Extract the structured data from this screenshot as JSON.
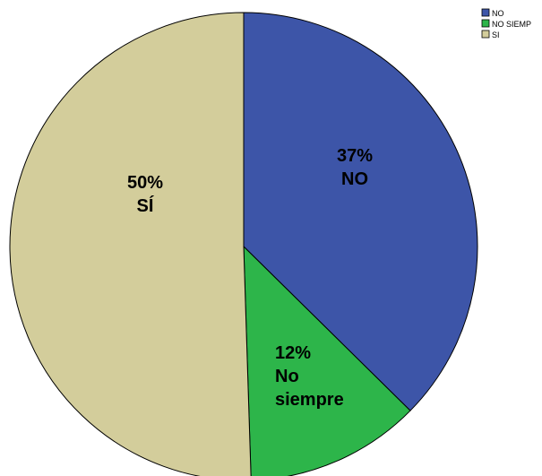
{
  "chart_data": {
    "type": "pie",
    "slices": [
      {
        "name": "NO",
        "value": 37,
        "color": "#3d55a8",
        "label_lines": [
          "37%",
          "NO"
        ]
      },
      {
        "name": "NO SIEMP",
        "value": 12,
        "color": "#2db54a",
        "label_lines": [
          "12%",
          "No",
          "siempre"
        ]
      },
      {
        "name": "SI",
        "value": 50,
        "color": "#d3cd9b",
        "label_lines": [
          "50%",
          "SÍ"
        ]
      }
    ],
    "start_angle_deg": 0,
    "direction": "clockwise",
    "legend": {
      "position": "top-right",
      "entries": [
        "NO",
        "NO SIEMP",
        "SI"
      ]
    }
  }
}
